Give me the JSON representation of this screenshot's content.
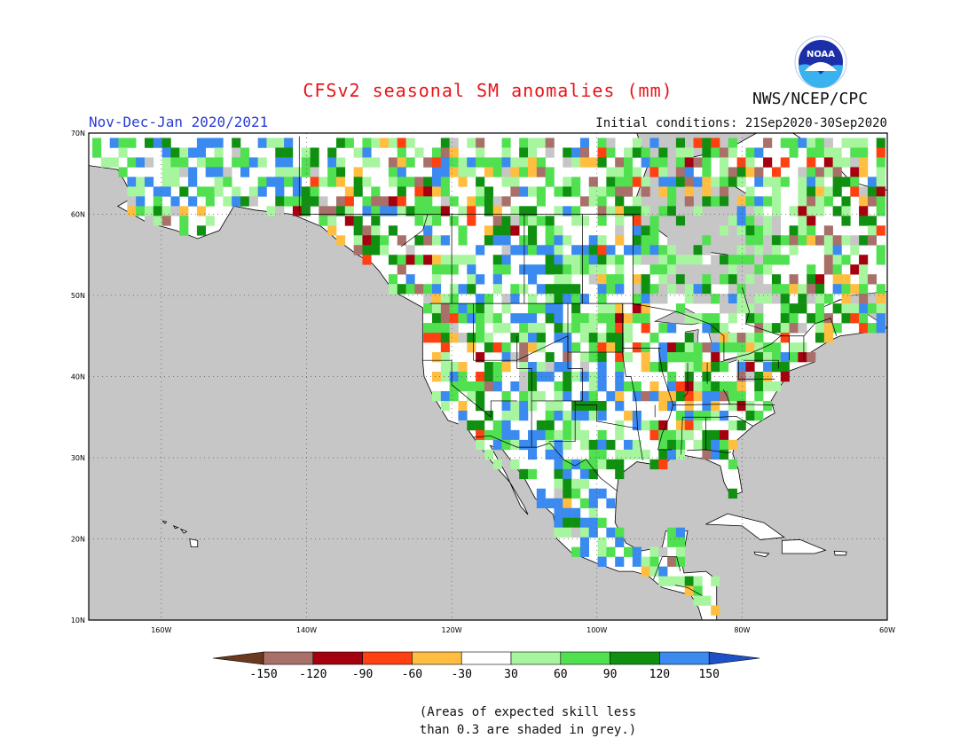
{
  "header": {
    "title": "CFSv2 seasonal SM anomalies (mm)",
    "period": "Nov-Dec-Jan 2020/2021",
    "initial_conditions": "Initial conditions: 21Sep2020-30Sep2020",
    "agency": "NWS/NCEP/CPC",
    "logo_text": "NOAA"
  },
  "map": {
    "lat_labels": [
      "70N",
      "60N",
      "50N",
      "40N",
      "30N",
      "20N",
      "10N"
    ],
    "lon_labels": [
      "160W",
      "140W",
      "120W",
      "100W",
      "80W",
      "60W"
    ],
    "colors": {
      "ocean": "#c6c6c6",
      "land": "#ffffff",
      "grid": "#666666",
      "border": "#000000"
    }
  },
  "legend": {
    "ticks": [
      "-150",
      "-120",
      "-90",
      "-60",
      "-30",
      "30",
      "60",
      "90",
      "120",
      "150"
    ],
    "colors": [
      "#6b3a1e",
      "#a87068",
      "#a50010",
      "#ff4010",
      "#ffbe40",
      "#ffffff",
      "#a8f5a0",
      "#50e050",
      "#109010",
      "#3a8af0",
      "#1e50c8"
    ]
  },
  "note": {
    "line1": "(Areas of expected skill less",
    "line2": "than 0.3 are shaded in grey.)"
  }
}
